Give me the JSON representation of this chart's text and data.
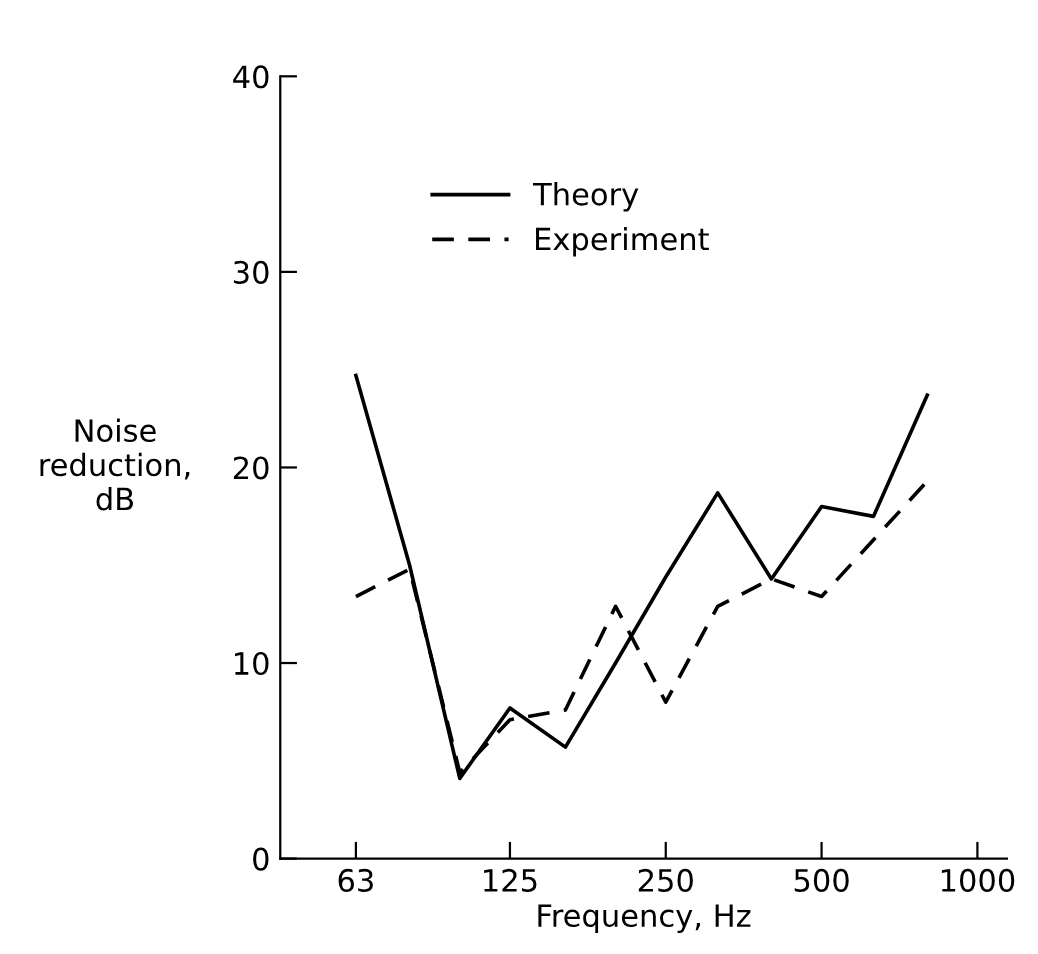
{
  "chart_data": {
    "type": "line",
    "xlabel": "Frequency, Hz",
    "ylabel": "Noise\nreduction,\ndB",
    "log": "x",
    "xlim": [
      45,
      1140
    ],
    "xticks": [
      63,
      125,
      250,
      500,
      1000
    ],
    "ylim": [
      0,
      40
    ],
    "yticks": [
      0,
      10,
      20,
      30,
      40
    ],
    "grid": false,
    "legend": "top",
    "marker": "none",
    "series": [
      {
        "name": "Theory",
        "color": "#000000",
        "line_style": "solid",
        "x": [
          63,
          80,
          100,
          125,
          160,
          200,
          250,
          315,
          400,
          500,
          630,
          800
        ],
        "values": [
          24.7,
          15.0,
          4.1,
          7.7,
          5.7,
          10.0,
          14.4,
          18.7,
          14.3,
          18.0,
          17.5,
          23.7
        ]
      },
      {
        "name": "Experiment",
        "color": "#000000",
        "line_style": "dashed",
        "x": [
          63,
          80,
          100,
          125,
          160,
          200,
          250,
          315,
          400,
          500,
          800
        ],
        "values": [
          13.4,
          14.8,
          4.4,
          7.1,
          7.6,
          12.9,
          8.0,
          12.9,
          14.3,
          13.4,
          19.3
        ]
      }
    ]
  }
}
